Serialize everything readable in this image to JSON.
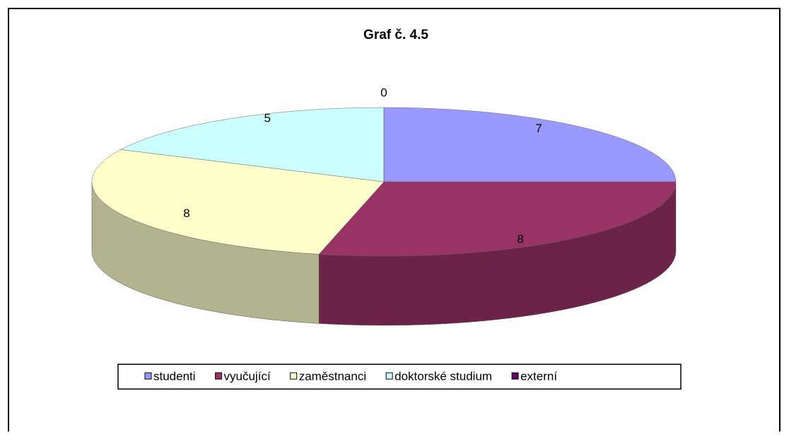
{
  "chart_data": {
    "type": "pie3d",
    "title": "Graf č. 4.5",
    "categories": [
      "studenti",
      "vyučující",
      "zaměstnanci",
      "doktorské studium",
      "externí"
    ],
    "values": [
      7,
      8,
      8,
      5,
      0
    ],
    "colors": [
      "#9999ff",
      "#993366",
      "#ffffcc",
      "#ccffff",
      "#660066"
    ],
    "legend": "bottom"
  }
}
